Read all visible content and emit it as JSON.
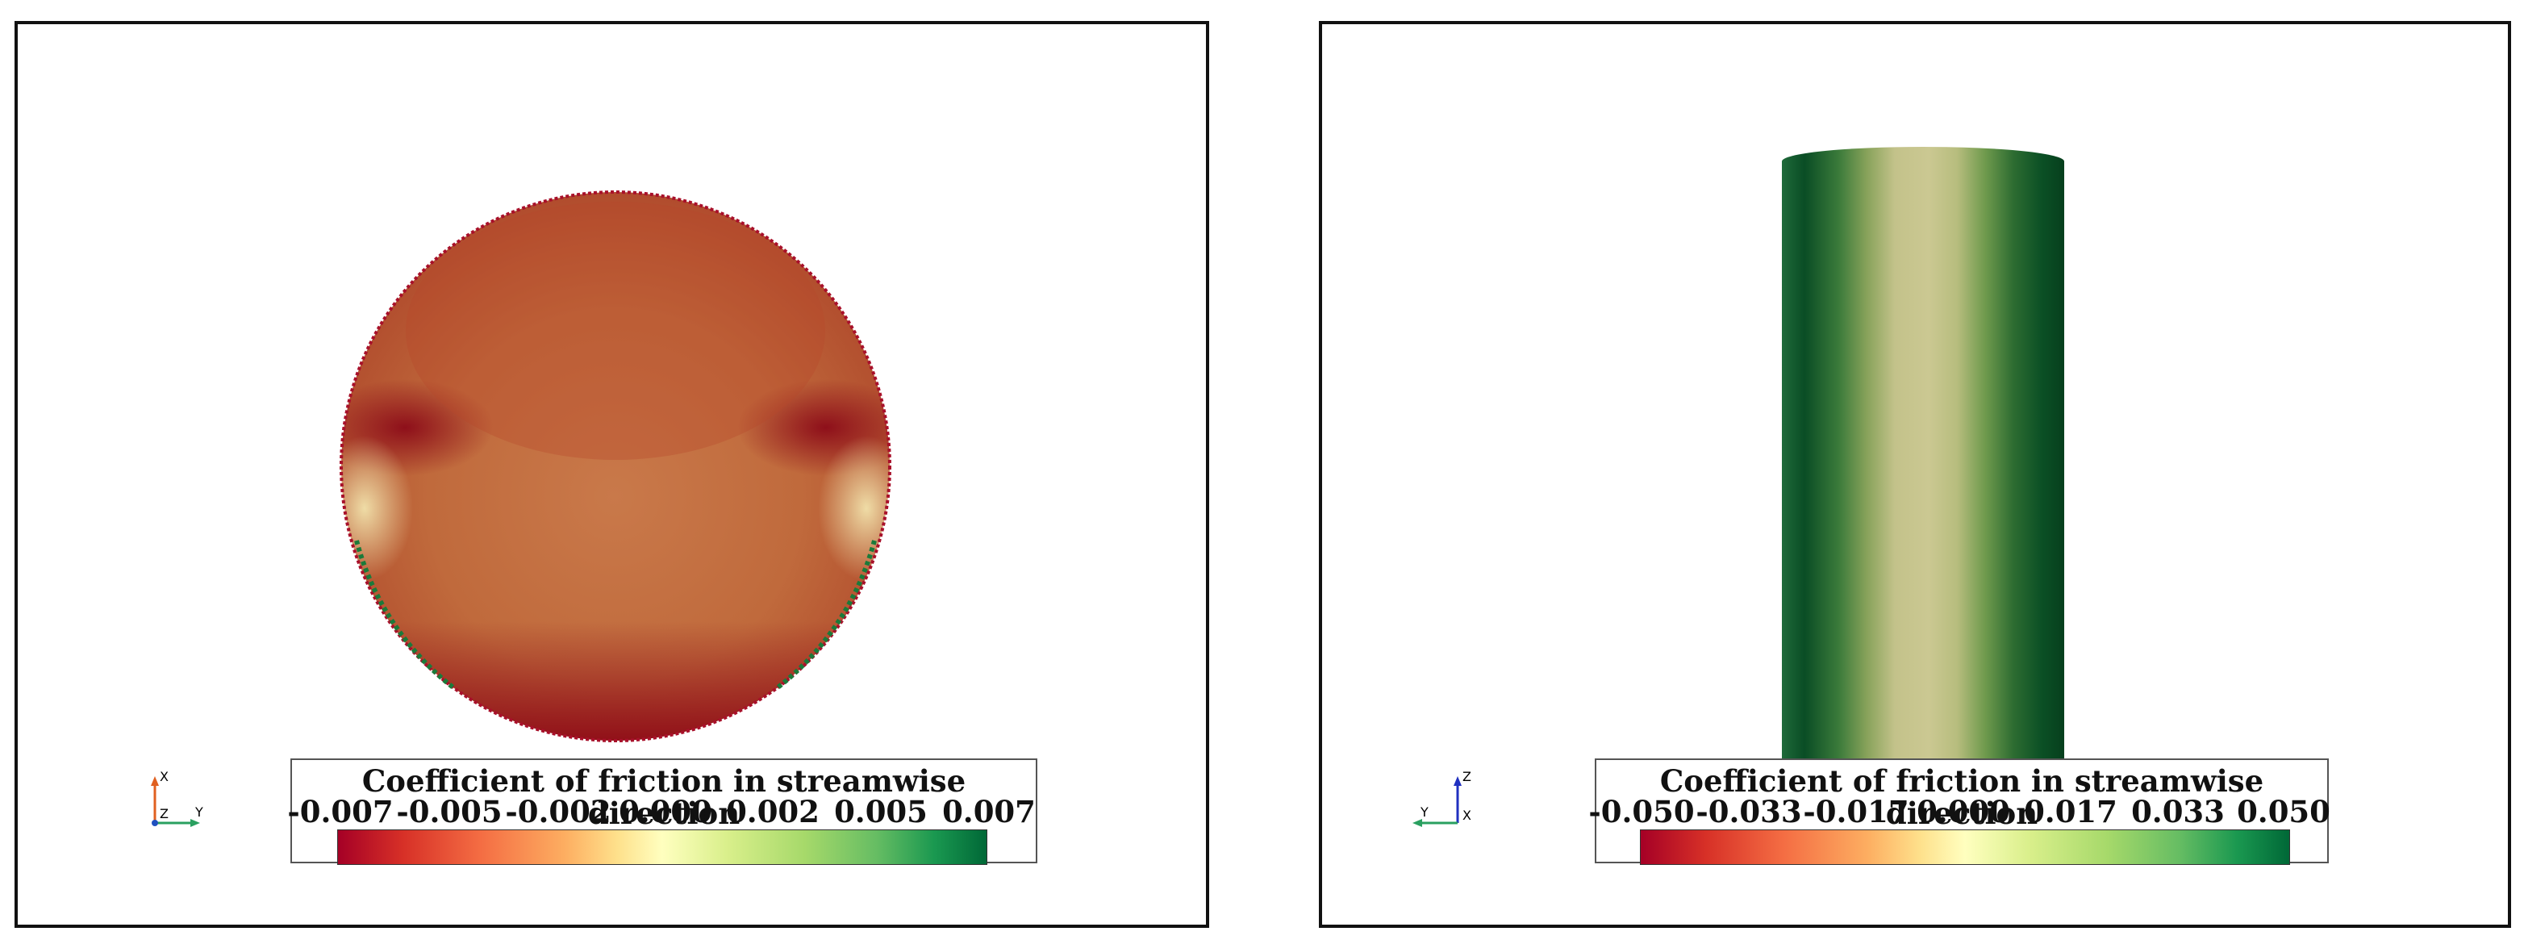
{
  "panels": [
    {
      "view": "top-down circular face",
      "legend": {
        "title": "Coefficient of friction in streamwise direction",
        "ticks": [
          "-0.007",
          "-0.005",
          "-0.002",
          "0.000",
          "0.002",
          "0.005",
          "0.007"
        ],
        "range": [
          -0.007,
          0.007
        ],
        "colormap": "RdYlGn"
      },
      "axes": {
        "vertical": "X",
        "horizontal": "Y",
        "out": "Z"
      }
    },
    {
      "view": "side cylinder",
      "legend": {
        "title": "Coefficient of friction in streamwise direction",
        "ticks": [
          "-0.050",
          "-0.033",
          "-0.017",
          "0.000",
          "0.017",
          "0.033",
          "0.050"
        ],
        "range": [
          -0.05,
          0.05
        ],
        "colormap": "RdYlGn"
      },
      "axes": {
        "vertical": "Z",
        "horizontal": "Y",
        "out": "X"
      }
    }
  ],
  "colors": {
    "border": "#111111",
    "field_red": "#b84a2a",
    "field_dark_red": "#8b0a16",
    "field_light": "#e9c493",
    "cyl_dark": "#0a4d25",
    "cyl_light": "#c8c48c"
  }
}
